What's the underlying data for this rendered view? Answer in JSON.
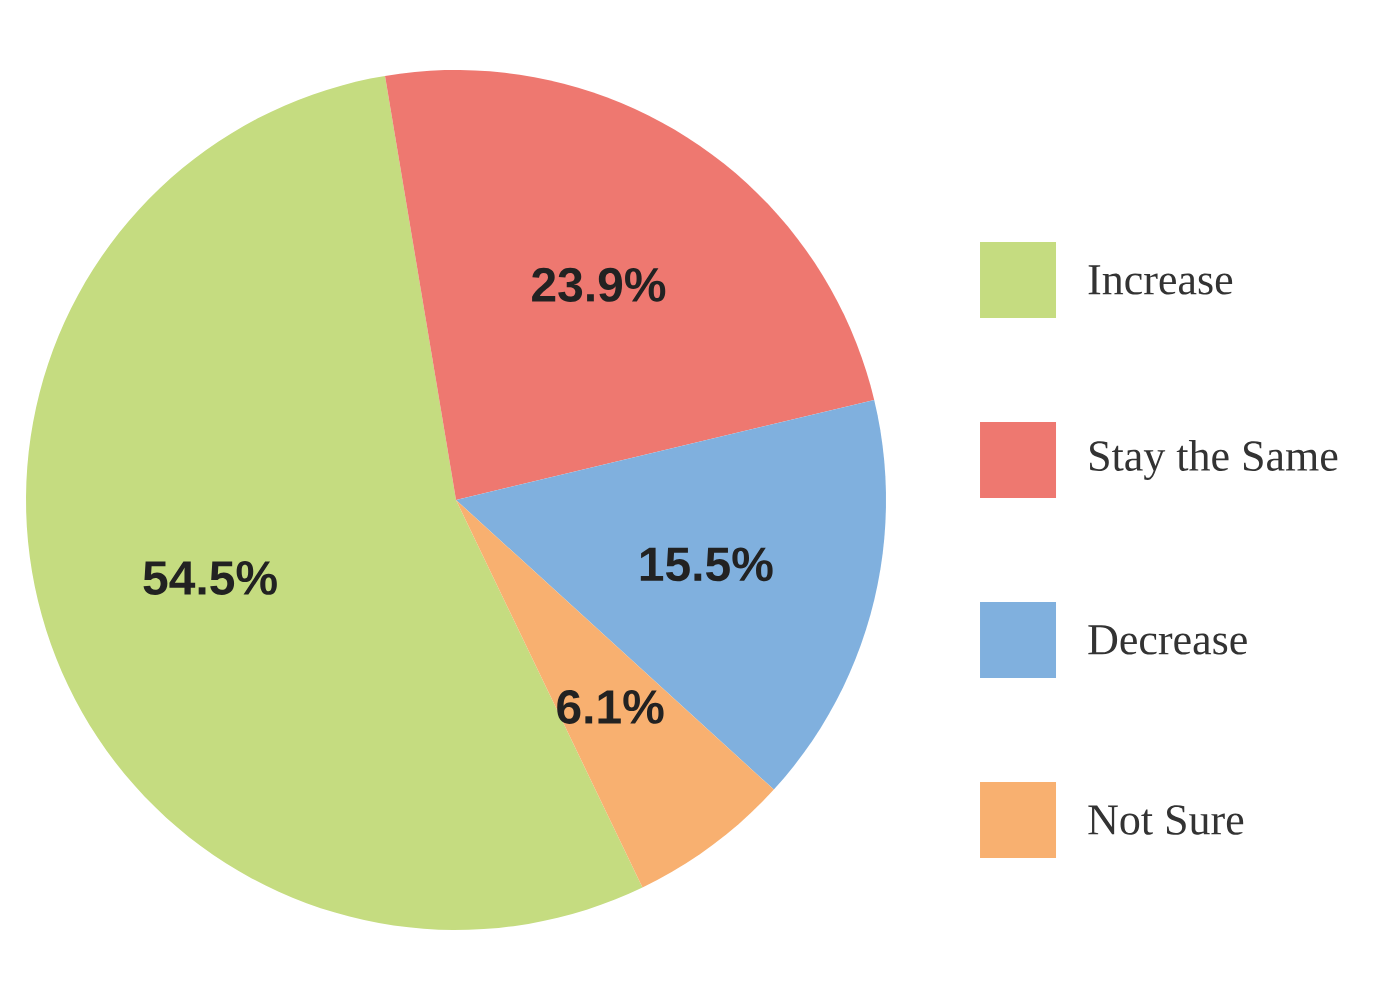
{
  "chart_data": {
    "type": "pie",
    "categories": [
      "Increase",
      "Stay the Same",
      "Decrease",
      "Not Sure"
    ],
    "values": [
      54.5,
      23.9,
      15.5,
      6.1
    ],
    "colors": [
      "#c5dc80",
      "#ee7870",
      "#80b0de",
      "#f8b070"
    ],
    "value_labels": [
      "54.5%",
      "23.9%",
      "15.5%",
      "6.1%"
    ],
    "legend": "right"
  }
}
